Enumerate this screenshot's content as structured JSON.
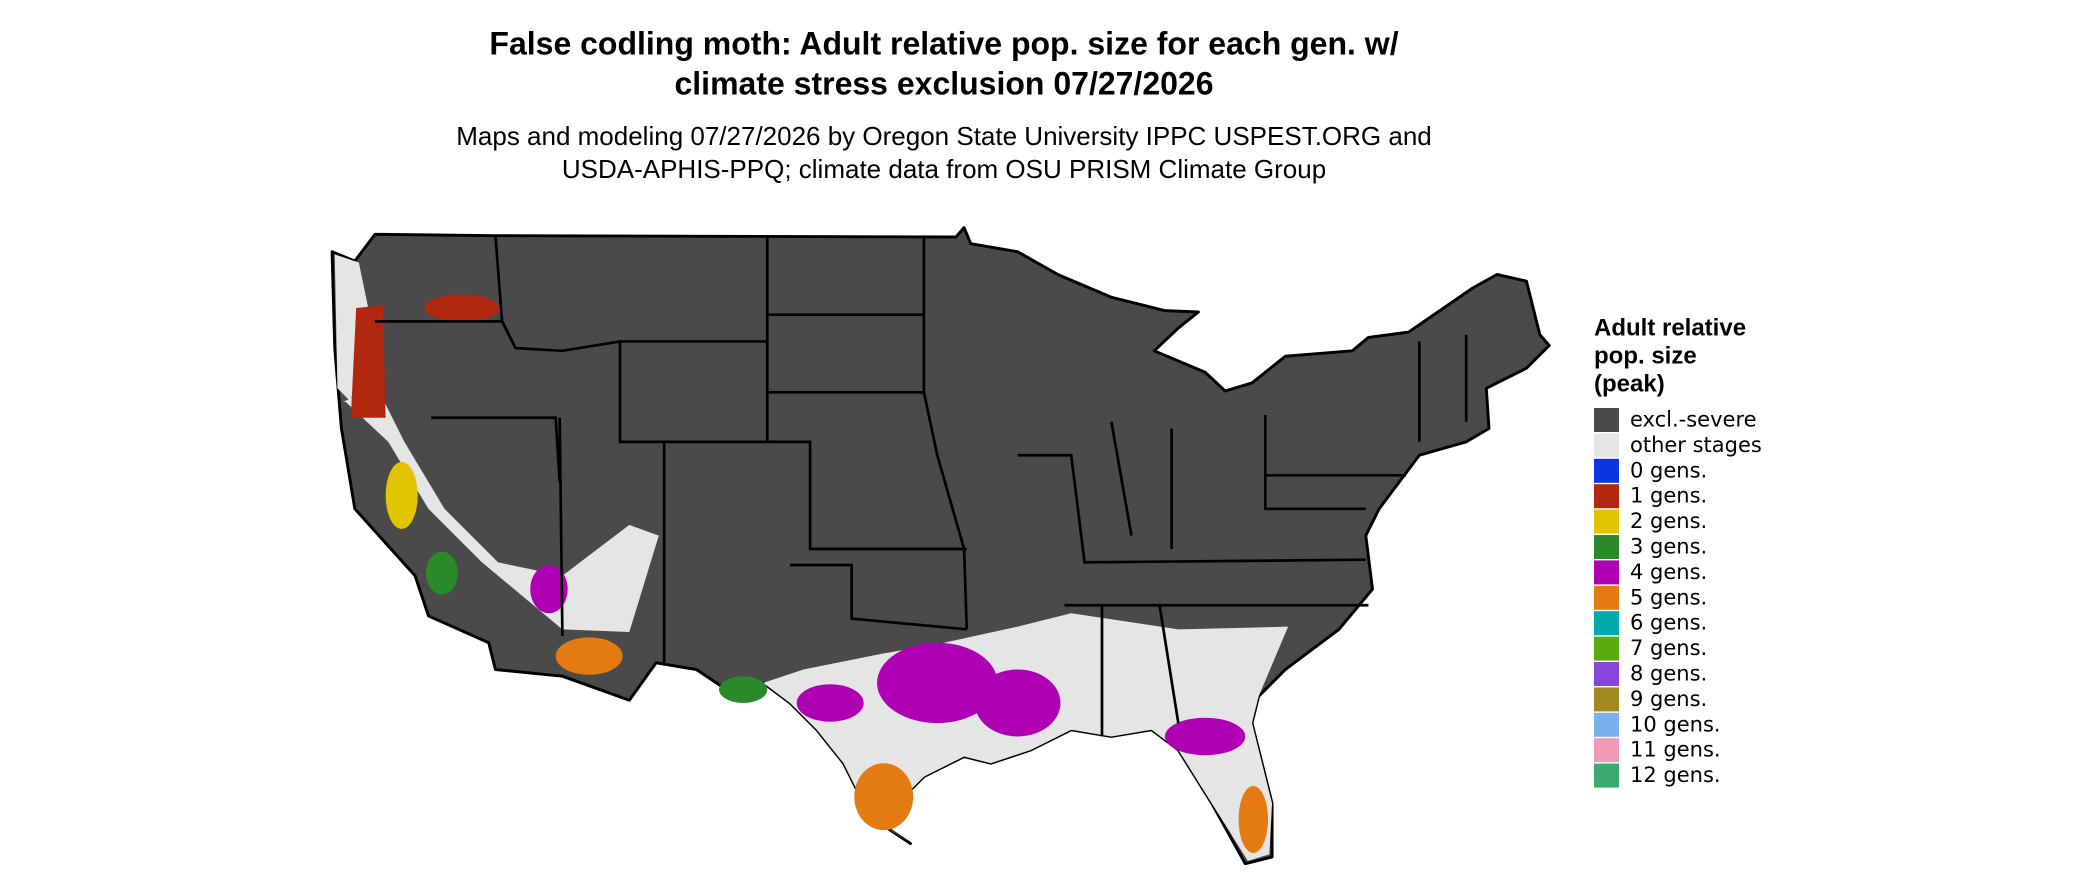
{
  "title": [
    "False codling moth: Adult relative pop. size for each gen. w/",
    "climate stress exclusion 07/27/2026"
  ],
  "subtitle": [
    "Maps and modeling 07/27/2026 by Oregon State University IPPC USPEST.ORG and",
    "USDA-APHIS-PPQ; climate data from OSU PRISM Climate Group"
  ],
  "legend": {
    "title": [
      "Adult relative",
      "pop. size",
      "(peak)"
    ],
    "items": [
      {
        "label": "excl.-severe",
        "color": "#4a4a4a"
      },
      {
        "label": "other stages",
        "color": "#e5e5e5"
      },
      {
        "label": "0 gens.",
        "color": "#0a36e0"
      },
      {
        "label": "1 gens.",
        "color": "#b2280e"
      },
      {
        "label": "2 gens.",
        "color": "#e3c400"
      },
      {
        "label": "3 gens.",
        "color": "#2a8a2a"
      },
      {
        "label": "4 gens.",
        "color": "#b000b4"
      },
      {
        "label": "5 gens.",
        "color": "#e47a12"
      },
      {
        "label": "6 gens.",
        "color": "#00aaaa"
      },
      {
        "label": "7 gens.",
        "color": "#5aaa10"
      },
      {
        "label": "8 gens.",
        "color": "#8a44dd"
      },
      {
        "label": "9 gens.",
        "color": "#a08a20"
      },
      {
        "label": "10 gens.",
        "color": "#7ab0f0"
      },
      {
        "label": "11 gens.",
        "color": "#f09ab8"
      },
      {
        "label": "12 gens.",
        "color": "#3aaa70"
      }
    ]
  }
}
